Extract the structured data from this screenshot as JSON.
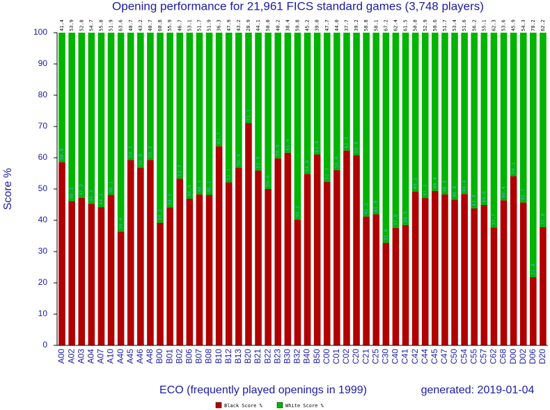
{
  "chart_data": {
    "type": "bar",
    "stacked": true,
    "title": "Opening performance for 21,961 FICS standard games (3,748 players)",
    "xlabel": "ECO (frequently played openings in 1999)",
    "annotation": "generated: 2019-01-04",
    "ylabel": "Score %",
    "categories": [
      "A00",
      "A02",
      "A03",
      "A04",
      "A07",
      "A10",
      "A40",
      "A45",
      "A46",
      "A48",
      "B00",
      "B01",
      "B02",
      "B06",
      "B07",
      "B08",
      "B10",
      "B12",
      "B13",
      "B20",
      "B21",
      "B22",
      "B23",
      "B30",
      "B32",
      "B40",
      "B50",
      "C00",
      "C01",
      "C02",
      "C20",
      "C21",
      "C25",
      "C30",
      "C40",
      "C41",
      "C42",
      "C44",
      "C45",
      "C47",
      "C50",
      "C54",
      "C55",
      "C57",
      "C62",
      "C68",
      "D00",
      "D02",
      "D06",
      "D20"
    ],
    "series": [
      {
        "name": "Black Score %",
        "color": "#b00000",
        "values": [
          58.6,
          46.1,
          47.2,
          45.3,
          44.2,
          48.1,
          36.4,
          59.3,
          56.8,
          59.3,
          39.2,
          44.1,
          53.3,
          46.9,
          48.3,
          48.1,
          63.7,
          52.1,
          56.8,
          71.1,
          55.9,
          50.0,
          59.8,
          61.6,
          40.2,
          54.8,
          61.0,
          52.3,
          56.0,
          62.3,
          60.8,
          41.2,
          41.9,
          32.8,
          37.6,
          38.5,
          49.2,
          47.1,
          49.4,
          48.3,
          46.6,
          48.4,
          43.8,
          44.9,
          37.7,
          46.4,
          54.1,
          45.7,
          21.8,
          37.8
        ],
        "value_labels": [
          "58.6",
          "46.1",
          "47.2",
          "45.3",
          "44.2",
          "48.1",
          "36.4",
          "59.3",
          "56.8",
          "59.3",
          "39.2",
          "44.1",
          "53.3",
          "46.9",
          "48.3",
          "48.1",
          "63.7",
          "52.1",
          "56.8",
          "71.1",
          "55.9",
          "50.0",
          "59.8",
          "61.6",
          "40.2",
          "54.8",
          "61.0",
          "52.3",
          "56.0",
          "62.3",
          "60.8",
          "41.2",
          "41.9",
          "32.8",
          "37.6",
          "38.5",
          "49.2",
          "47.1",
          "49.4",
          "48.3",
          "46.6",
          "48.4",
          "43.8",
          "44.9",
          "37.7",
          "46.4",
          "54.1",
          "45.7",
          "21.8",
          "37.8"
        ]
      },
      {
        "name": "White Score %",
        "color": "#00b400",
        "values": [
          41.4,
          53.9,
          52.8,
          54.7,
          55.8,
          51.9,
          63.6,
          40.7,
          43.2,
          40.7,
          60.8,
          55.9,
          46.7,
          53.1,
          51.7,
          51.9,
          36.3,
          47.9,
          43.2,
          28.9,
          44.1,
          50.0,
          40.2,
          38.4,
          59.8,
          45.2,
          39.0,
          47.7,
          44.0,
          37.7,
          39.2,
          58.8,
          58.1,
          67.2,
          62.4,
          61.5,
          50.8,
          52.9,
          50.6,
          51.7,
          53.4,
          51.6,
          56.2,
          55.1,
          62.3,
          53.6,
          45.9,
          54.3,
          78.2,
          62.2
        ],
        "value_labels": [
          "41.4",
          "53.9",
          "52.8",
          "54.7",
          "55.8",
          "51.9",
          "63.6",
          "40.7",
          "43.2",
          "40.7",
          "60.8",
          "55.9",
          "46.7",
          "53.1",
          "51.7",
          "51.9",
          "36.3",
          "47.9",
          "43.2",
          "28.9",
          "44.1",
          "50.0",
          "40.2",
          "38.4",
          "59.8",
          "45.2",
          "39.0",
          "47.7",
          "44.0",
          "37.7",
          "39.2",
          "58.8",
          "58.1",
          "67.2",
          "62.4",
          "61.5",
          "50.8",
          "52.9",
          "50.6",
          "51.7",
          "53.4",
          "51.6",
          "56.2",
          "55.1",
          "62.3",
          "53.6",
          "45.9",
          "54.3",
          "78.2",
          "62.2"
        ]
      }
    ],
    "ylim": [
      0,
      100
    ],
    "yticks": [
      0,
      10,
      20,
      30,
      40,
      50,
      60,
      70,
      80,
      90,
      100
    ]
  }
}
